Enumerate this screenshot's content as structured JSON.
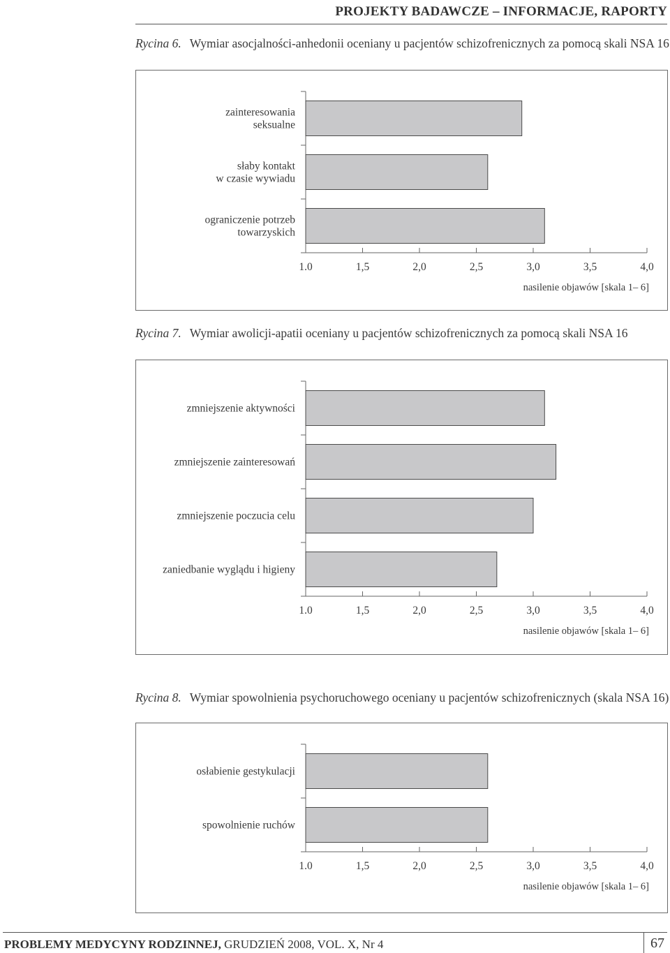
{
  "header": {
    "title": "PROJEKTY BADAWCZE – INFORMACJE, RAPORTY"
  },
  "footer": {
    "journal": "PROBLEMY MEDYCYNY RODZINNEJ,",
    "issue": "GRUDZIEŃ 2008, VOL. X, Nr 4",
    "page": "67"
  },
  "captions": [
    {
      "label": "Rycina 6.",
      "text": "Wymiar asocjalności-anhedonii oceniany u pacjentów schizofrenicznych za pomocą skali NSA 16"
    },
    {
      "label": "Rycina 7.",
      "text": "Wymiar awolicji-apatii oceniany u pacjentów schizofrenicznych za pomocą skali NSA 16"
    },
    {
      "label": "Rycina 8.",
      "text": "Wymiar spowolnienia psychoruchowego oceniany u pacjentów schizofrenicznych (skala NSA 16)"
    }
  ],
  "chart_data": [
    {
      "type": "bar",
      "orientation": "horizontal",
      "categories": [
        [
          "zainteresowania",
          "seksualne"
        ],
        [
          "słaby kontakt",
          "w czasie wywiadu"
        ],
        [
          "ograniczenie potrzeb",
          "towarzyskich"
        ]
      ],
      "values": [
        2.9,
        2.6,
        3.1
      ],
      "xlim": [
        1.0,
        4.0
      ],
      "ticks": [
        "1.0",
        "1,5",
        "2,0",
        "2,5",
        "3,0",
        "3,5",
        "4,0"
      ],
      "xlabel": "nasilenie objawów [skala 1– 6]",
      "bar_color": "#c8c8ca"
    },
    {
      "type": "bar",
      "orientation": "horizontal",
      "categories": [
        [
          "zmniejszenie aktywności"
        ],
        [
          "zmniejszenie zainteresowań"
        ],
        [
          "zmniejszenie poczucia celu"
        ],
        [
          "zaniedbanie wyglądu i higieny"
        ]
      ],
      "values": [
        3.1,
        3.2,
        3.0,
        2.68
      ],
      "xlim": [
        1.0,
        4.0
      ],
      "ticks": [
        "1.0",
        "1,5",
        "2,0",
        "2,5",
        "3,0",
        "3,5",
        "4,0"
      ],
      "xlabel": "nasilenie objawów [skala 1– 6]",
      "bar_color": "#c8c8ca"
    },
    {
      "type": "bar",
      "orientation": "horizontal",
      "categories": [
        [
          "osłabienie gestykulacji"
        ],
        [
          "spowolnienie ruchów"
        ]
      ],
      "values": [
        2.6,
        2.6
      ],
      "xlim": [
        1.0,
        4.0
      ],
      "ticks": [
        "1.0",
        "1,5",
        "2,0",
        "2,5",
        "3,0",
        "3,5",
        "4,0"
      ],
      "xlabel": "nasilenie objawów [skala 1– 6]",
      "bar_color": "#c8c8ca"
    }
  ]
}
